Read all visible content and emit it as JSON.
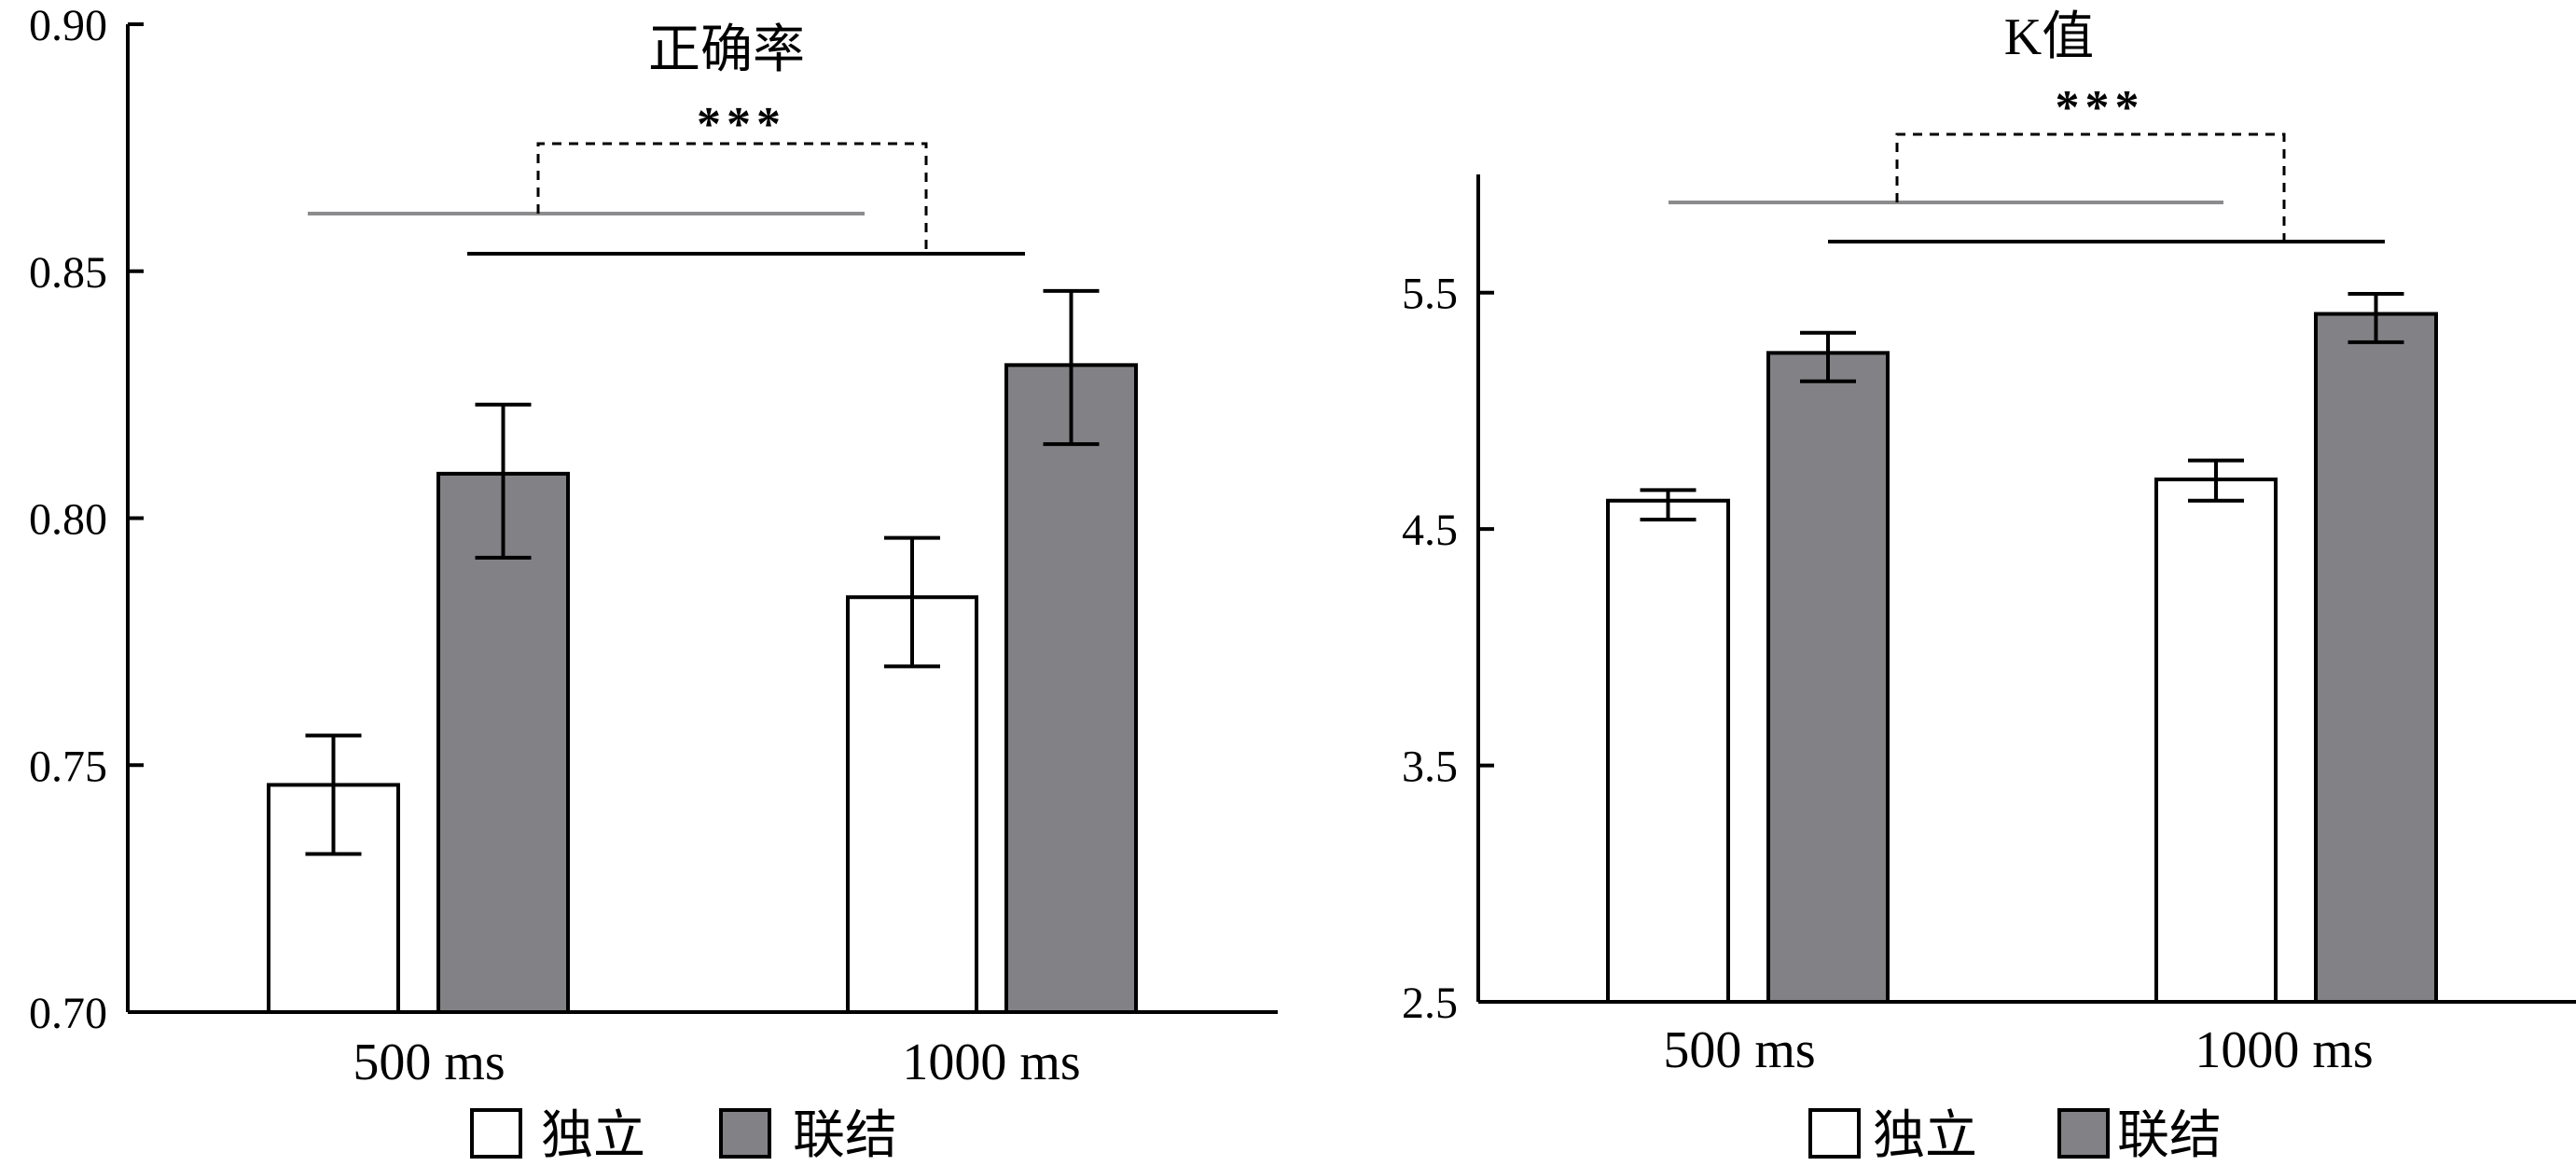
{
  "colors": {
    "independent": "#ffffff",
    "linked": "#828286",
    "axis": "#000000",
    "gray_line": "#8c8c8e"
  },
  "chart_data": [
    {
      "type": "bar",
      "title": "正确率",
      "categories": [
        "500 ms",
        "1000 ms"
      ],
      "ylim": [
        0.7,
        0.9
      ],
      "yticks": [
        0.7,
        0.75,
        0.8,
        0.85,
        0.9
      ],
      "ytick_labels": [
        "0.70",
        "0.75",
        "0.80",
        "0.85",
        "0.90"
      ],
      "series": [
        {
          "name": "独立",
          "values": [
            0.746,
            0.784
          ],
          "err_low": [
            0.732,
            0.77
          ],
          "err_high": [
            0.756,
            0.796
          ]
        },
        {
          "name": "联结",
          "values": [
            0.809,
            0.831
          ],
          "err_low": [
            0.792,
            0.815
          ],
          "err_high": [
            0.823,
            0.846
          ]
        }
      ],
      "significance": "***",
      "legend": [
        "独立",
        "联结"
      ],
      "legend_position": "bottom"
    },
    {
      "type": "bar",
      "title": "K值",
      "categories": [
        "500 ms",
        "1000 ms"
      ],
      "ylim": [
        2.5,
        6.0
      ],
      "yticks": [
        2.5,
        3.5,
        4.5,
        5.5
      ],
      "ytick_labels": [
        "2.5",
        "3.5",
        "4.5",
        "5.5"
      ],
      "series": [
        {
          "name": "独立",
          "values": [
            4.62,
            4.71
          ],
          "err_low": [
            4.54,
            4.62
          ],
          "err_high": [
            4.665,
            4.79
          ]
        },
        {
          "name": "联结",
          "values": [
            5.245,
            5.41
          ],
          "err_low": [
            5.125,
            5.29
          ],
          "err_high": [
            5.33,
            5.495
          ]
        }
      ],
      "significance": "***",
      "legend": [
        "独立",
        "联结"
      ],
      "legend_position": "bottom"
    }
  ]
}
